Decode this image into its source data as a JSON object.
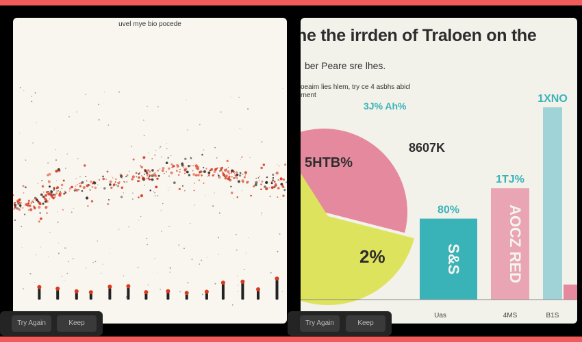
{
  "colors": {
    "frame": "#f25b5b",
    "pink": "#e58a9e",
    "yellow": "#dde35c",
    "teal": "#3ab3b8",
    "lightblue": "#9fd3d8",
    "dotred": "#d9381e"
  },
  "left_panel": {
    "caption": "uvel mye bio pocede"
  },
  "right_panel": {
    "title": "he the irrden of Traloen on the",
    "subtitle": "ber Peare sre lhes.",
    "description_line1": "oeaim lies hlem, try ce 4 asbhs abicl",
    "description_line2": "rnent"
  },
  "chart_data": {
    "type": "bar",
    "pie": {
      "slices": [
        {
          "label": "5HTB%",
          "value": 38,
          "color": "#e58a9e"
        },
        {
          "label": "2%",
          "value": 62,
          "color": "#dde35c"
        }
      ],
      "outside_labels": [
        "3J% Ah%",
        "8607K"
      ]
    },
    "bars": [
      {
        "value": 80,
        "top_label": "80%",
        "inner_label": "S&S",
        "category": "Uas",
        "color": "#3ab3b8"
      },
      {
        "value": 110,
        "top_label": "1TJ%",
        "inner_label": "AOCZ RED",
        "category": "4MS",
        "color": "#e9a5b3"
      },
      {
        "value": 190,
        "top_label": "1XNO",
        "inner_label": "",
        "category": "B1S",
        "color": "#9fd3d8"
      }
    ],
    "ylim": [
      0,
      200
    ]
  },
  "actions": {
    "left": {
      "try_again": "Try Again",
      "keep": "Keep"
    },
    "right": {
      "try_again": "Try Again",
      "keep": "Keep"
    }
  }
}
